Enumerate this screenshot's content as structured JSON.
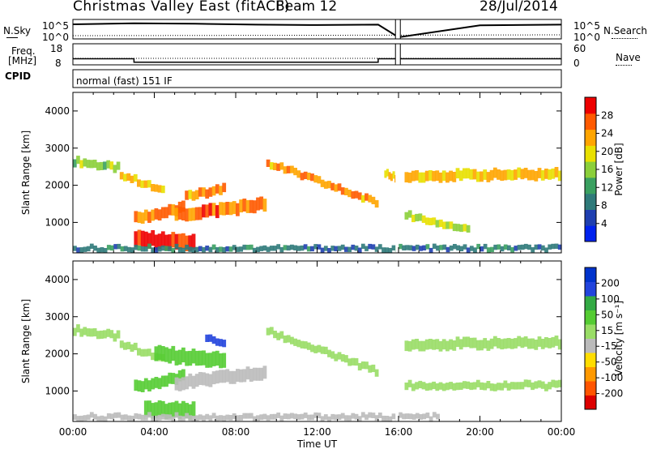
{
  "header": {
    "title": "Christmas Valley East (fitACF)",
    "beam": "Beam 12",
    "date": "28/Jul/2014"
  },
  "status_panels": {
    "nsky_label": "N.Sky",
    "nsky_ticks": [
      "10^5",
      "10^0"
    ],
    "nsearch_label": "N.Search",
    "freq_label_1": "Freq.",
    "freq_label_2": "[MHz]",
    "freq_ticks": [
      "18",
      "8"
    ],
    "nave_ticks": [
      "60",
      "0"
    ],
    "nave_label": "Nave",
    "cpid_label": "CPID",
    "cpid_value": "normal (fast) 151 IF"
  },
  "colors": {
    "power_scale": [
      "#0022ee",
      "#1f3fb0",
      "#2f7a7a",
      "#3aa060",
      "#8bcf3a",
      "#e8e000",
      "#ffa500",
      "#ff5a00",
      "#ee0000"
    ],
    "velocity_scale": [
      "#0033cc",
      "#2244dd",
      "#33aa44",
      "#55cc33",
      "#99dd66",
      "#bbbbbb",
      "#ffdd00",
      "#ff9900",
      "#ff5500",
      "#dd0000"
    ]
  },
  "chart_data": [
    {
      "type": "heatmap",
      "title": "",
      "xlabel": "Time UT",
      "ylabel": "Slant Range [km]",
      "x_tick_labels": [
        "00:00",
        "04:00",
        "08:00",
        "12:00",
        "16:00",
        "20:00",
        "00:00"
      ],
      "xlim_hours": [
        0,
        24
      ],
      "y_tick_labels": [
        "1000",
        "2000",
        "3000",
        "4000"
      ],
      "ylim": [
        180,
        4500
      ],
      "colorbar": {
        "label": "Power [dB]",
        "ticks": [
          "28",
          "24",
          "20",
          "16",
          "12",
          "8",
          "4"
        ],
        "range": [
          0,
          30
        ]
      },
      "bands": [
        {
          "t0": 0.0,
          "t1": 2.3,
          "r0": 2650,
          "r1": 2450,
          "w": 220,
          "value": 16
        },
        {
          "t0": 2.3,
          "t1": 4.5,
          "r0": 2300,
          "r1": 1800,
          "w": 200,
          "value": 20
        },
        {
          "t0": 3.0,
          "t1": 5.5,
          "r0": 1100,
          "r1": 1400,
          "w": 300,
          "value": 24
        },
        {
          "t0": 3.0,
          "t1": 6.0,
          "r0": 550,
          "r1": 450,
          "w": 420,
          "value": 28
        },
        {
          "t0": 5.0,
          "t1": 9.5,
          "r0": 1200,
          "r1": 1500,
          "w": 350,
          "value": 24
        },
        {
          "t0": 5.5,
          "t1": 7.5,
          "r0": 1700,
          "r1": 1900,
          "w": 250,
          "value": 22
        },
        {
          "t0": 9.5,
          "t1": 15.0,
          "r0": 2600,
          "r1": 1500,
          "w": 200,
          "value": 22
        },
        {
          "t0": 15.3,
          "t1": 15.9,
          "r0": 2300,
          "r1": 2200,
          "w": 200,
          "value": 20
        },
        {
          "t0": 16.3,
          "t1": 24.0,
          "r0": 2250,
          "r1": 2300,
          "w": 280,
          "value": 20
        },
        {
          "t0": 16.3,
          "t1": 19.5,
          "r0": 1200,
          "r1": 800,
          "w": 200,
          "value": 16
        },
        {
          "t0": 0.0,
          "t1": 24.0,
          "r0": 300,
          "r1": 300,
          "w": 140,
          "value": 8
        }
      ],
      "velocity_bands": [
        {
          "t0": 0.0,
          "t1": 2.3,
          "r0": 2650,
          "r1": 2450,
          "w": 220,
          "value": 0
        },
        {
          "t0": 2.3,
          "t1": 4.5,
          "r0": 2300,
          "r1": 1800,
          "w": 200,
          "value": 0
        },
        {
          "t0": 3.0,
          "t1": 5.5,
          "r0": 1100,
          "r1": 1400,
          "w": 300,
          "value": 30
        },
        {
          "t0": 4.0,
          "t1": 7.5,
          "r0": 2000,
          "r1": 1800,
          "w": 400,
          "value": 40
        },
        {
          "t0": 6.5,
          "t1": 7.5,
          "r0": 2400,
          "r1": 2300,
          "w": 200,
          "value": 150
        },
        {
          "t0": 3.5,
          "t1": 6.0,
          "r0": 500,
          "r1": 450,
          "w": 420,
          "value": 20
        },
        {
          "t0": 5.0,
          "t1": 9.5,
          "r0": 1200,
          "r1": 1500,
          "w": 350,
          "value": -40
        },
        {
          "t0": 9.5,
          "t1": 15.0,
          "r0": 2600,
          "r1": 1500,
          "w": 200,
          "value": 0
        },
        {
          "t0": 16.3,
          "t1": 24.0,
          "r0": 2250,
          "r1": 2300,
          "w": 280,
          "value": 0
        },
        {
          "t0": 16.3,
          "t1": 24.0,
          "r0": 1150,
          "r1": 1150,
          "w": 200,
          "value": 0
        },
        {
          "t0": 0.0,
          "t1": 18.0,
          "r0": 300,
          "r1": 300,
          "w": 150,
          "value": -30
        }
      ],
      "velocity_colorbar": {
        "label": "Velocity [m s⁻¹]",
        "ticks": [
          "200",
          "100",
          "50",
          "15",
          "-15",
          "-50",
          "-100",
          "-200"
        ]
      }
    },
    {
      "type": "line",
      "title": "",
      "series": [
        {
          "name": "N.Sky",
          "x": [
            0,
            3,
            6,
            9,
            12,
            15,
            16,
            20,
            24
          ],
          "y": [
            10000,
            20000,
            15000,
            8000,
            6000,
            8000,
            1,
            5000,
            8000
          ]
        },
        {
          "name": "Freq.",
          "x": [
            0,
            3,
            3,
            15,
            15,
            24
          ],
          "y": [
            10.5,
            10.5,
            8.6,
            8.6,
            10.5,
            10.5
          ]
        }
      ]
    }
  ]
}
